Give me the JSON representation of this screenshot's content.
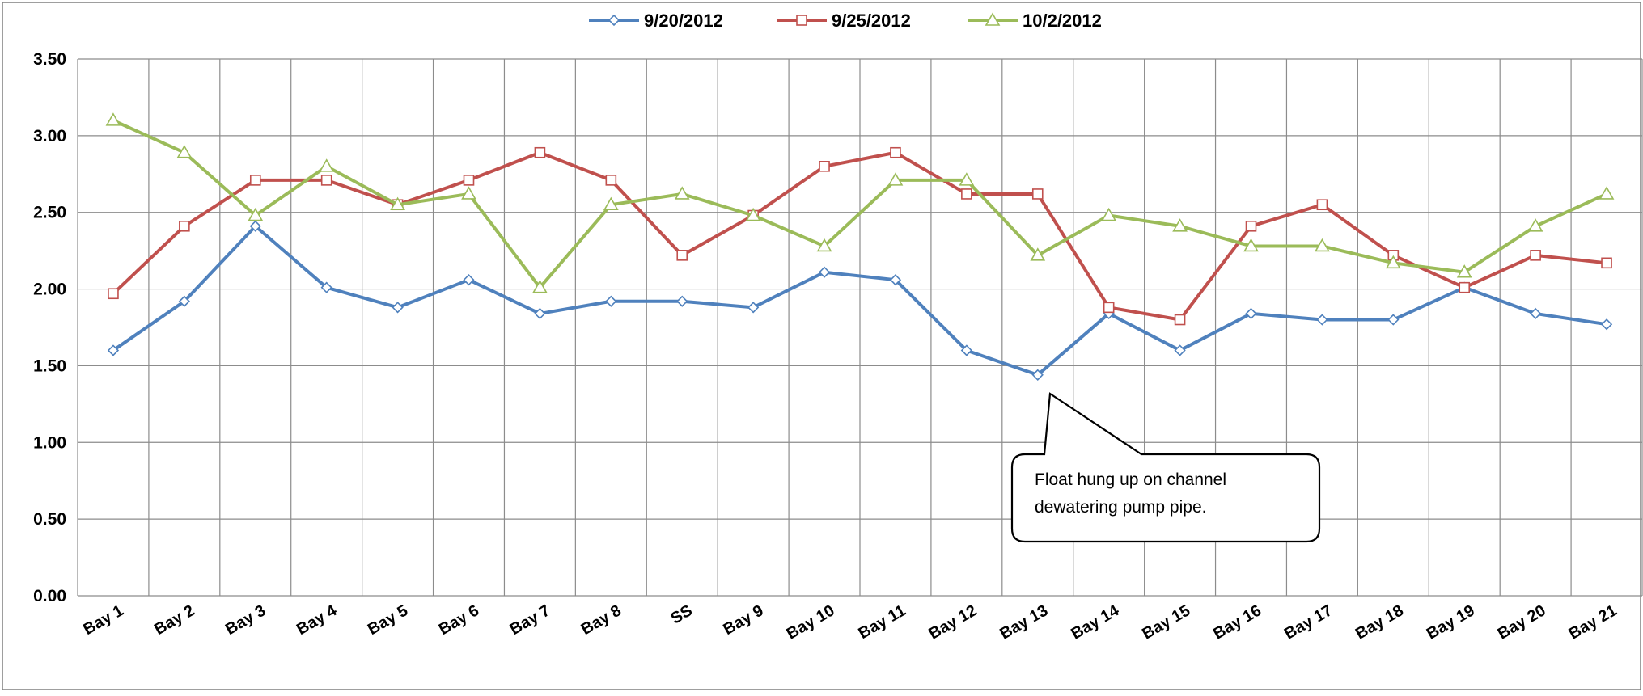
{
  "chart_data": {
    "type": "line",
    "title": "",
    "xlabel": "",
    "ylabel": "",
    "categories": [
      "Bay 1",
      "Bay 2",
      "Bay 3",
      "Bay 4",
      "Bay 5",
      "Bay 6",
      "Bay 7",
      "Bay 8",
      "SS",
      "Bay 9",
      "Bay 10",
      "Bay 11",
      "Bay 12",
      "Bay 13",
      "Bay 14",
      "Bay 15",
      "Bay 16",
      "Bay 17",
      "Bay 18",
      "Bay 19",
      "Bay 20",
      "Bay 21"
    ],
    "ylim": [
      0,
      3.5
    ],
    "yticks": [
      "0.00",
      "0.50",
      "1.00",
      "1.50",
      "2.00",
      "2.50",
      "3.00",
      "3.50"
    ],
    "grid": "on",
    "legend_position": "top",
    "series": [
      {
        "name": "9/20/2012",
        "color": "#4F81BD",
        "marker": "diamond",
        "values": [
          1.6,
          1.92,
          2.41,
          2.01,
          1.88,
          2.06,
          1.84,
          1.92,
          1.92,
          1.88,
          2.11,
          2.06,
          1.6,
          1.44,
          1.84,
          1.6,
          1.84,
          1.8,
          1.8,
          2.01,
          1.84,
          1.77
        ]
      },
      {
        "name": "9/25/2012",
        "color": "#C0504D",
        "marker": "square",
        "values": [
          1.97,
          2.41,
          2.71,
          2.71,
          2.55,
          2.71,
          2.89,
          2.71,
          2.22,
          2.48,
          2.8,
          2.89,
          2.62,
          2.62,
          1.88,
          1.8,
          2.41,
          2.55,
          2.22,
          2.01,
          2.22,
          2.17
        ]
      },
      {
        "name": "10/2/2012",
        "color": "#9BBB59",
        "marker": "triangle",
        "values": [
          3.1,
          2.89,
          2.48,
          2.8,
          2.55,
          2.62,
          2.01,
          2.55,
          2.62,
          2.48,
          2.28,
          2.71,
          2.71,
          2.22,
          2.48,
          2.41,
          2.28,
          2.28,
          2.17,
          2.11,
          2.41,
          2.62
        ]
      }
    ],
    "annotations": [
      {
        "lines": [
          "Float hung up on channel",
          "dewatering  pump pipe."
        ],
        "points_to": {
          "category": "Bay 13",
          "value": 1.44
        }
      }
    ]
  }
}
